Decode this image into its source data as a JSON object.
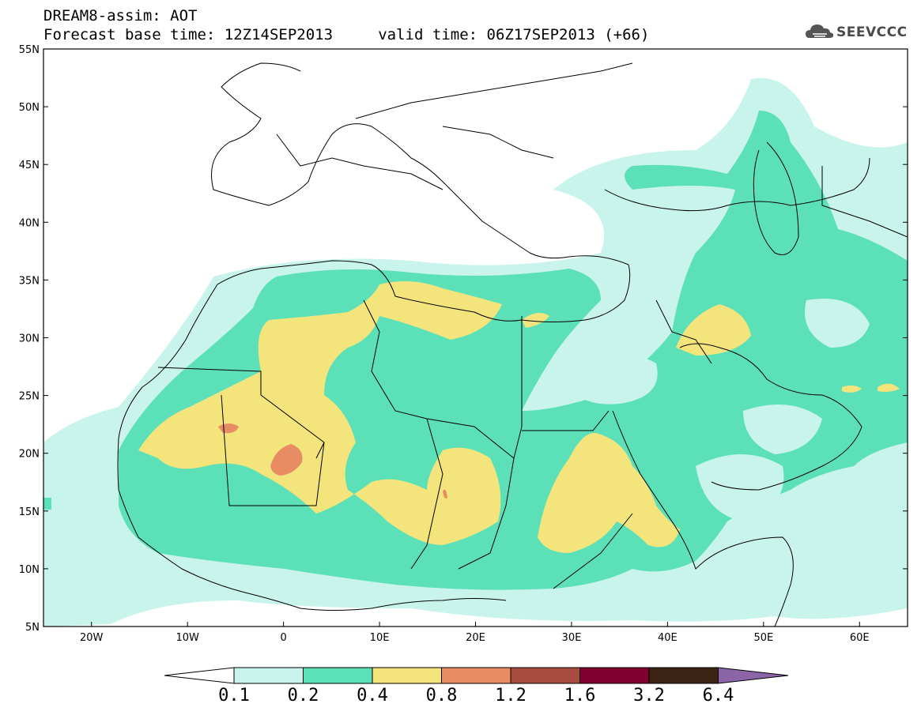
{
  "header": {
    "title_line1": "DREAM8-assim: AOT",
    "title_line2": "Forecast base time: 12Z14SEP2013     valid time: 06Z17SEP2013 (+66)"
  },
  "logo": {
    "text": "SEEVCCC",
    "icon": "cloud-logo-icon"
  },
  "map": {
    "lat_range": [
      5,
      55
    ],
    "lon_range": [
      -25,
      65
    ],
    "lat_ticks": [
      "5N",
      "10N",
      "15N",
      "20N",
      "25N",
      "30N",
      "35N",
      "40N",
      "45N",
      "50N",
      "55N"
    ],
    "lon_ticks": [
      "20W",
      "10W",
      "0",
      "10E",
      "20E",
      "30E",
      "40E",
      "50E",
      "60E"
    ]
  },
  "colorbar": {
    "levels": [
      "0.1",
      "0.2",
      "0.4",
      "0.8",
      "1.2",
      "1.6",
      "3.2",
      "6.4"
    ],
    "colors": [
      "#ffffff",
      "#c8f4ec",
      "#5ce0b8",
      "#f4e47c",
      "#e88c64",
      "#a84c40",
      "#800030",
      "#3c2414",
      "#8c64a8"
    ]
  }
}
